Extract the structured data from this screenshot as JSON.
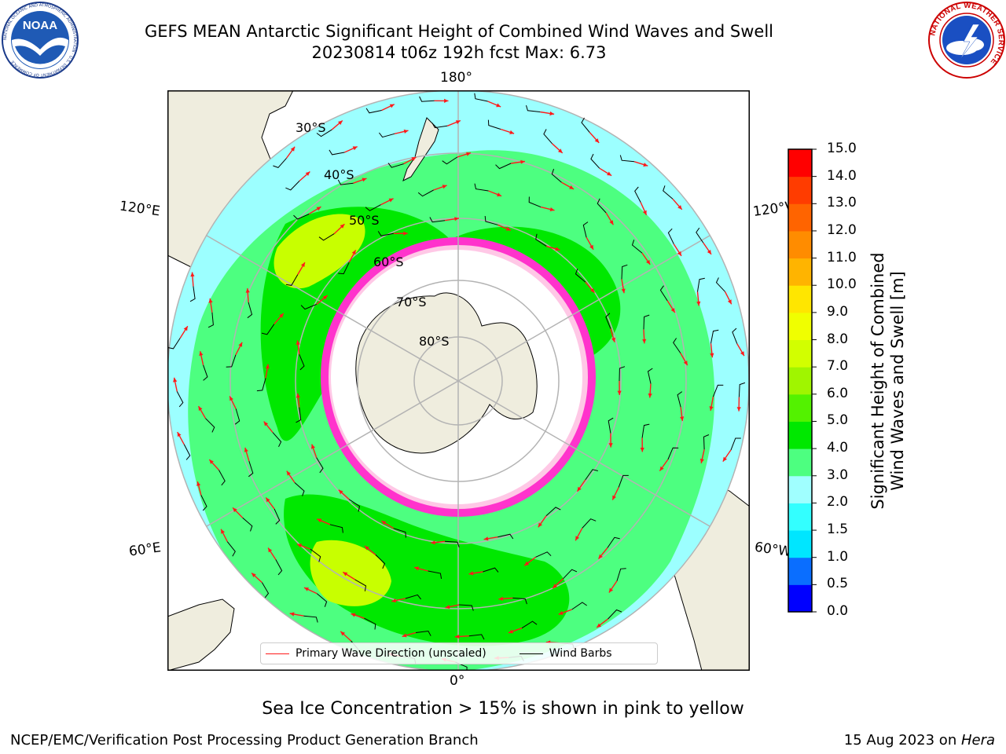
{
  "header": {
    "title_line1": "GEFS MEAN Antarctic Significant Height of Combined Wind Waves and Swell",
    "title_line2": "20230814 t06z 192h fcst   Max: 6.73"
  },
  "logos": {
    "noaa_text": "NOAA",
    "noaa_ring_text": "NATIONAL OCEANIC AND ATMOSPHERIC ADMINISTRATION · U.S. DEPARTMENT OF COMMERCE",
    "nws_ring_text": "NATIONAL WEATHER SERVICE"
  },
  "map": {
    "projection": "south-polar-stereographic",
    "longitude_labels": {
      "top": "180°",
      "bottom": "0°",
      "upper_left": "120°E",
      "upper_right": "120°W",
      "lower_left": "60°E",
      "lower_right": "60°W"
    },
    "latitude_labels": [
      "30°S",
      "40°S",
      "50°S",
      "60°S",
      "70°S",
      "80°S"
    ],
    "legend": {
      "primary_wave_direction": "Primary Wave Direction (unscaled)",
      "wind_barbs": "Wind Barbs"
    },
    "colors": {
      "land": "#efedde",
      "ocean_low": "#9cffff",
      "ocean_mid": "#4dff80",
      "ocean_high": "#00e800",
      "ocean_peak": "#c8ff00",
      "ice_edge": "#ff33cc",
      "ice_interior": "#ffffff",
      "arrow": "#ff1a1a",
      "barb": "#000000"
    }
  },
  "colorbar": {
    "label_line1": "Significant Height of Combined",
    "label_line2": "Wind Waves and Swell [m]",
    "ticks": [
      "0.0",
      "0.5",
      "1.0",
      "1.5",
      "2.0",
      "3.0",
      "4.0",
      "5.0",
      "6.0",
      "7.0",
      "8.0",
      "9.0",
      "10.0",
      "11.0",
      "12.0",
      "13.0",
      "14.0",
      "15.0"
    ],
    "colors": [
      "#0000ff",
      "#0a6eff",
      "#00e6ff",
      "#33ffff",
      "#a0ffff",
      "#4dff80",
      "#00e800",
      "#53f200",
      "#a0f500",
      "#d2ff00",
      "#f0ff00",
      "#ffe600",
      "#ffb400",
      "#ff8c00",
      "#ff6400",
      "#ff3c00",
      "#ff0000"
    ]
  },
  "caption": "Sea Ice Concentration > 15% is shown in pink to yellow",
  "footer": {
    "left": "NCEP/EMC/Verification Post Processing Product Generation Branch",
    "right_date": "15 Aug 2023 on ",
    "right_machine": "Hera"
  }
}
